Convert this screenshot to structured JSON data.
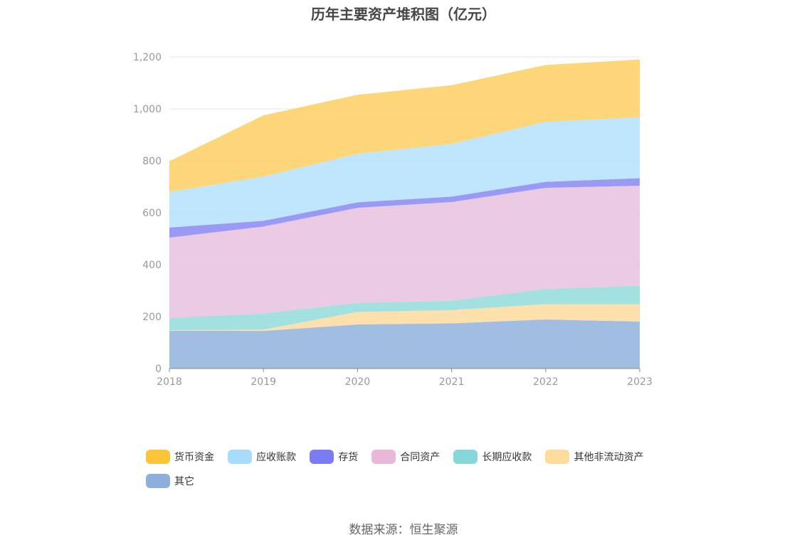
{
  "title": "历年主要资产堆积图（亿元）",
  "source": "数据来源：恒生聚源",
  "chart_data": {
    "type": "area",
    "stacked": true,
    "x": [
      "2018",
      "2019",
      "2020",
      "2021",
      "2022",
      "2023"
    ],
    "ylim": [
      0,
      1200
    ],
    "yticks": [
      "0",
      "200",
      "400",
      "600",
      "800",
      "1,000",
      "1,200"
    ],
    "ytick_values": [
      0,
      200,
      400,
      600,
      800,
      1000,
      1200
    ],
    "grid": true,
    "legend_position": "bottom",
    "series": [
      {
        "name": "其它",
        "color": "#8eaedc",
        "values": [
          146,
          145,
          170,
          174,
          189,
          181
        ]
      },
      {
        "name": "其他非流动资产",
        "color": "#fdd99a",
        "values": [
          2,
          5,
          48,
          51,
          59,
          67
        ]
      },
      {
        "name": "长期应收款",
        "color": "#8fdada",
        "values": [
          46,
          62,
          35,
          36,
          58,
          71
        ]
      },
      {
        "name": "合同资产",
        "color": "#e6bedd",
        "values": [
          310,
          335,
          366,
          380,
          390,
          385
        ]
      },
      {
        "name": "存货",
        "color": "#8484f2",
        "values": [
          39,
          22,
          21,
          21,
          23,
          29
        ]
      },
      {
        "name": "应收账款",
        "color": "#b1e1fb",
        "values": [
          137,
          170,
          187,
          203,
          231,
          235
        ]
      },
      {
        "name": "货币资金",
        "color": "#fccd5c",
        "values": [
          118,
          236,
          227,
          226,
          219,
          222
        ]
      }
    ]
  },
  "legend": [
    {
      "label": "货币资金",
      "color": "#fbc53a"
    },
    {
      "label": "应收账款",
      "color": "#a7ddfb"
    },
    {
      "label": "存货",
      "color": "#7b7bf2"
    },
    {
      "label": "合同资产",
      "color": "#e8b8d9"
    },
    {
      "label": "长期应收款",
      "color": "#86d7d8"
    },
    {
      "label": "其他非流动资产",
      "color": "#fedb9b"
    },
    {
      "label": "其它",
      "color": "#8eaedc"
    }
  ]
}
